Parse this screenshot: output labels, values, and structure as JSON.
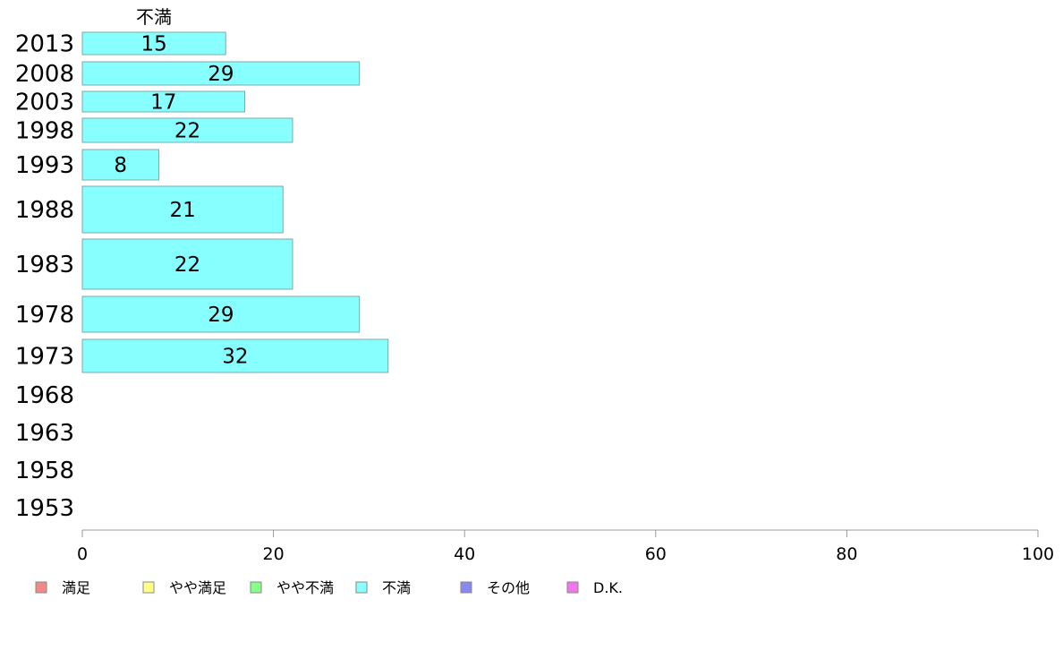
{
  "chart_data": {
    "type": "bar",
    "orientation": "horizontal",
    "series_title": "不満",
    "categories": [
      "2013",
      "2008",
      "2003",
      "1998",
      "1993",
      "1988",
      "1983",
      "1978",
      "1973",
      "1968",
      "1963",
      "1958",
      "1953"
    ],
    "series": [
      {
        "name": "不満",
        "color": "#88ffff",
        "values": [
          15,
          29,
          17,
          22,
          8,
          21,
          22,
          29,
          32,
          null,
          null,
          null,
          null
        ]
      }
    ],
    "xlim": [
      0,
      100
    ],
    "xticks": [
      "0",
      "20",
      "40",
      "60",
      "80",
      "100"
    ],
    "legend": [
      {
        "label": "満足",
        "color": "#f28b85"
      },
      {
        "label": "やや満足",
        "color": "#ffff88"
      },
      {
        "label": "やや不満",
        "color": "#88ff88"
      },
      {
        "label": "不満",
        "color": "#88ffff"
      },
      {
        "label": "その他",
        "color": "#8888ee"
      },
      {
        "label": "D.K.",
        "color": "#ee77ee"
      }
    ],
    "legend_position": "bottom",
    "grid": false
  }
}
